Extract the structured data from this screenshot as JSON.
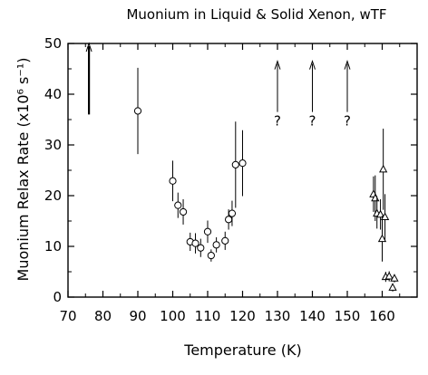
{
  "chart_data": {
    "type": "scatter",
    "title": "Muonium in Liquid & Solid Xenon, wTF",
    "xlabel": "Temperature (K)",
    "ylabel": "Muonium Relax Rate (x10⁶ s⁻¹)",
    "xlim": [
      70,
      170
    ],
    "ylim": [
      0,
      50
    ],
    "xticks": [
      70,
      80,
      90,
      100,
      110,
      120,
      130,
      140,
      150,
      160
    ],
    "yticks": [
      0,
      10,
      20,
      30,
      40,
      50
    ],
    "grid": false,
    "legend": "none",
    "lower_limit_arrows": [
      {
        "x": 76,
        "y_from": 36,
        "y_to": 50
      }
    ],
    "unknown_arrows": [
      {
        "x": 130,
        "y_from": 36.5,
        "y_to": 46.5,
        "label": "?"
      },
      {
        "x": 140,
        "y_from": 36.5,
        "y_to": 46.5,
        "label": "?"
      },
      {
        "x": 150,
        "y_from": 36.5,
        "y_to": 46.5,
        "label": "?"
      }
    ],
    "series": [
      {
        "marker": "circle",
        "x": [
          90,
          100,
          101.5,
          103,
          105,
          106.5,
          108,
          110,
          111,
          112.5,
          115,
          116,
          117,
          118,
          120
        ],
        "y": [
          36.7,
          22.9,
          18.1,
          16.8,
          10.9,
          10.6,
          9.7,
          12.9,
          8.2,
          10.3,
          11.1,
          15.3,
          16.5,
          26.1,
          26.4
        ],
        "err": [
          8.5,
          4.0,
          2.5,
          2.5,
          1.8,
          2.0,
          1.8,
          2.2,
          1.2,
          1.5,
          1.8,
          2.0,
          2.5,
          8.5,
          6.5
        ]
      },
      {
        "marker": "triangle",
        "x": [
          157.5,
          158,
          158.5,
          159.5,
          160,
          160.3,
          160.8,
          161,
          162,
          163,
          163.5
        ],
        "y": [
          20.3,
          19.5,
          16.5,
          16.3,
          11.5,
          25.2,
          15.8,
          4.0,
          4.1,
          1.9,
          3.7
        ],
        "err": [
          3.5,
          4.5,
          3.0,
          3.0,
          4.5,
          8.0,
          4.5,
          1.0,
          1.0,
          0.8,
          0.8
        ]
      }
    ]
  }
}
